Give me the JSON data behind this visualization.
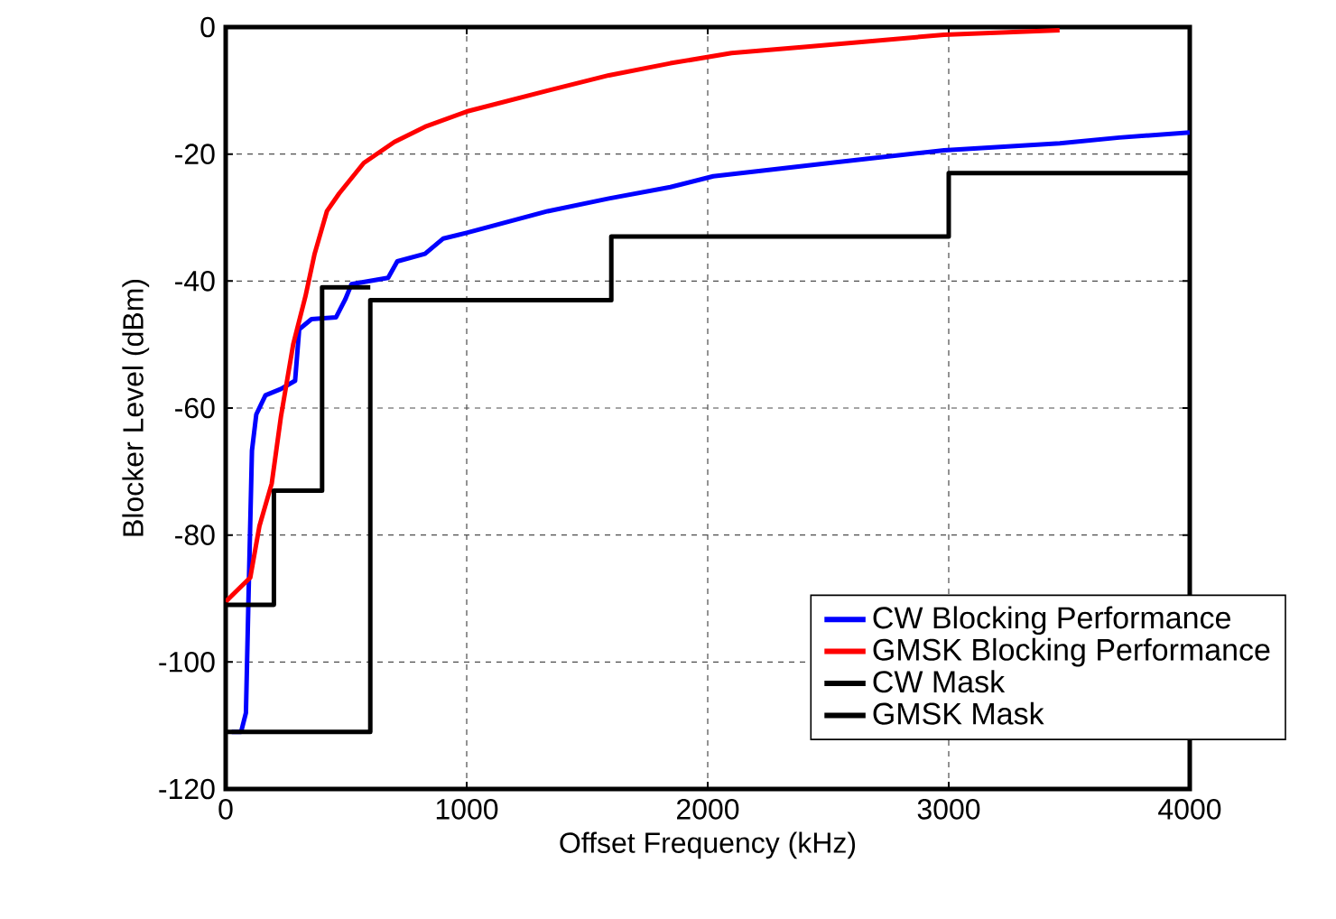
{
  "chart_data": {
    "type": "line",
    "xlabel": "Offset Frequency (kHz)",
    "ylabel": "Blocker Level (dBm)",
    "xlim": [
      0,
      4000
    ],
    "ylim": [
      -120,
      0
    ],
    "xticks": [
      0,
      1000,
      2000,
      3000,
      4000
    ],
    "yticks": [
      -120,
      -100,
      -80,
      -60,
      -40,
      -20,
      0
    ],
    "grid": true,
    "legend": "bottom right",
    "series": [
      {
        "name": "CW Blocking Performance",
        "color": "#0000ff",
        "x": [
          25,
          64,
          84,
          94,
          109,
          127,
          165,
          229,
          288,
          305,
          356,
          458,
          496,
          522,
          674,
          712,
          827,
          903,
          1000,
          1336,
          1590,
          1845,
          2023,
          2532,
          2981,
          3461,
          3708,
          4000
        ],
        "values": [
          -111,
          -111,
          -108,
          -91,
          -66.7,
          -61,
          -58,
          -57,
          -55.7,
          -47.6,
          -46,
          -45.7,
          -42.9,
          -40.5,
          -39.5,
          -36.9,
          -35.7,
          -33.3,
          -32.4,
          -29,
          -27,
          -25.2,
          -23.5,
          -21.3,
          -19.4,
          -18.3,
          -17.4,
          -16.6
        ]
      },
      {
        "name": "GMSK Blocking Performance",
        "color": "#ff0000",
        "x": [
          0,
          102,
          140,
          191,
          229,
          280,
          331,
          369,
          420,
          471,
          573,
          700,
          827,
          1000,
          1336,
          1590,
          1845,
          2099,
          2412,
          2981,
          3460
        ],
        "values": [
          -90.5,
          -86.7,
          -78.6,
          -71.9,
          -61.4,
          -50,
          -42.4,
          -35.7,
          -29,
          -26.2,
          -21.4,
          -18.1,
          -15.7,
          -13.3,
          -10,
          -7.6,
          -5.7,
          -4.1,
          -3.1,
          -1.2,
          -0.5
        ]
      },
      {
        "name": "CW Mask",
        "type": "step",
        "color": "#000000",
        "x": [
          0,
          200,
          400,
          600
        ],
        "values": [
          -91,
          -73,
          -41,
          -41
        ]
      },
      {
        "name": "GMSK Mask",
        "type": "step",
        "color": "#000000",
        "x": [
          0,
          600,
          1600,
          3000,
          4000
        ],
        "values": [
          -111,
          -43,
          -33,
          -23,
          -23
        ]
      }
    ]
  }
}
